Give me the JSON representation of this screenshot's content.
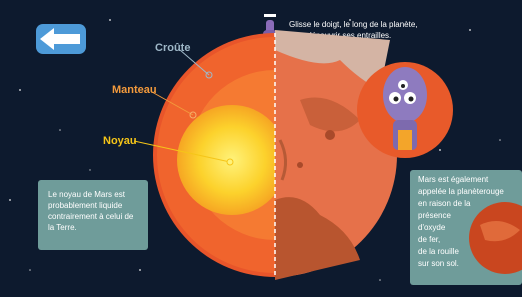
{
  "instruction": {
    "lines": [
      "Glisse le doigt, le long de la planète,",
      "pour découvrir ses entrailles."
    ]
  },
  "layers": {
    "crust": "Croûte",
    "mantle": "Manteau",
    "core": "Noyau"
  },
  "info_left": {
    "lines": [
      "Le noyau de Mars est",
      "probablement liquide",
      "contrairement à celui de",
      "la Terre."
    ]
  },
  "info_right": {
    "lines": [
      "Mars est également",
      "appelée la planèterouge",
      "en raison de la",
      "présence",
      "d'oxyde",
      "de fer,",
      "de la rouille",
      "sur son sol."
    ]
  }
}
